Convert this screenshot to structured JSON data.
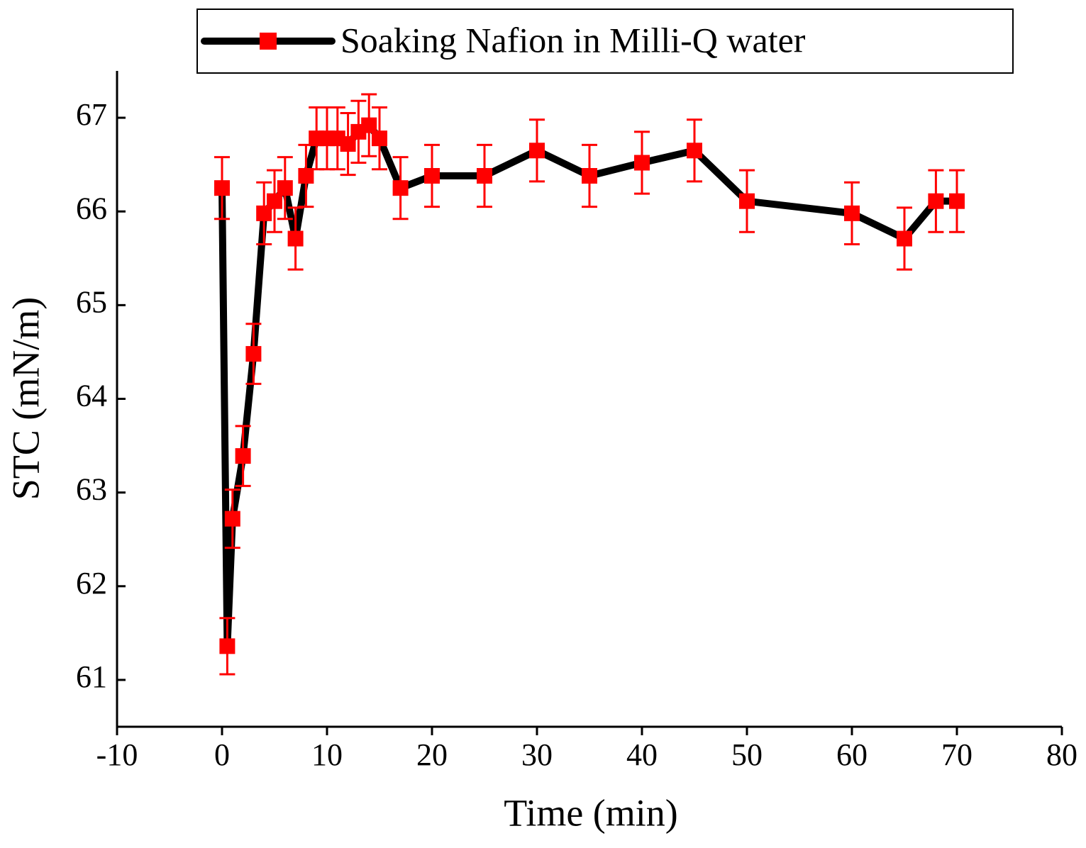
{
  "chart_data": {
    "type": "line",
    "xlabel": "Time (min)",
    "ylabel": "STC (mN/m)",
    "x": [
      0,
      0.5,
      1,
      2,
      3,
      4,
      5,
      6,
      7,
      8,
      9,
      10,
      11,
      12,
      13,
      14,
      15,
      17,
      20,
      25,
      30,
      35,
      40,
      45,
      50,
      60,
      65,
      68,
      70
    ],
    "series": [
      {
        "name": "Soaking Nafion in Milli-Q water",
        "color": "#000000",
        "marker_color": "#ff0000",
        "values": [
          66.25,
          61.36,
          62.72,
          63.39,
          64.48,
          65.98,
          66.11,
          66.25,
          65.71,
          66.38,
          66.78,
          66.78,
          66.78,
          66.72,
          66.85,
          66.92,
          66.78,
          66.25,
          66.38,
          66.38,
          66.65,
          66.38,
          66.52,
          66.65,
          66.11,
          65.98,
          65.71,
          66.11,
          66.11
        ],
        "errors": [
          0.33,
          0.3,
          0.31,
          0.32,
          0.32,
          0.33,
          0.33,
          0.33,
          0.33,
          0.33,
          0.33,
          0.33,
          0.33,
          0.33,
          0.33,
          0.33,
          0.33,
          0.33,
          0.33,
          0.33,
          0.33,
          0.33,
          0.33,
          0.33,
          0.33,
          0.33,
          0.33,
          0.33,
          0.33
        ]
      }
    ],
    "xlim": [
      -10,
      80
    ],
    "xticks": [
      -10,
      0,
      10,
      20,
      30,
      40,
      50,
      60,
      70,
      80
    ],
    "ylim": [
      60.5,
      67.5
    ],
    "yticks": [
      61,
      62,
      63,
      64,
      65,
      66,
      67
    ],
    "legend": "top"
  }
}
